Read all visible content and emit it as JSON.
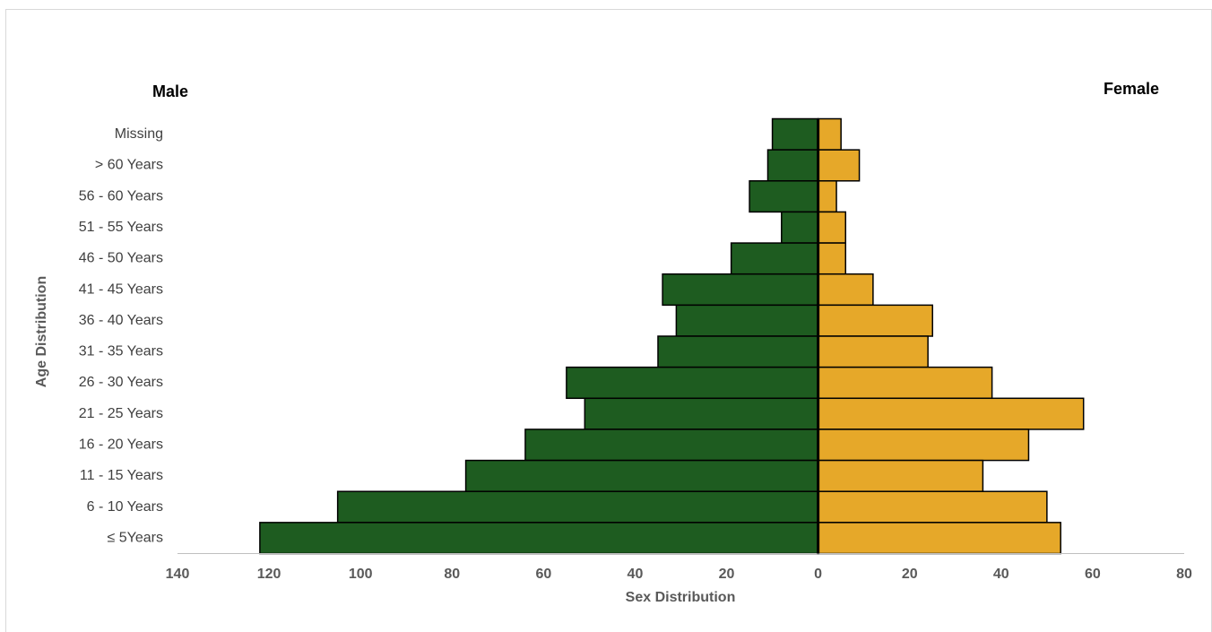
{
  "chart_data": {
    "type": "pyramid",
    "y_label": "Age Distribution",
    "x_label": "Sex Distribution",
    "categories": [
      "Missing",
      "> 60 Years",
      "56 - 60 Years",
      "51 - 55 Years",
      "46 - 50 Years",
      "41 - 45 Years",
      "36 - 40 Years",
      "31 - 35 Years",
      "26 - 30 Years",
      "21 - 25 Years",
      "16 - 20 Years",
      "11 - 15 Years",
      "6 - 10 Years",
      "≤ 5Years"
    ],
    "series": [
      {
        "name": "Male",
        "color": "#1e5c20",
        "values": [
          -10,
          -11,
          -15,
          -8,
          -19,
          -34,
          -31,
          -35,
          -55,
          -51,
          -64,
          -77,
          -105,
          -122
        ]
      },
      {
        "name": "Female",
        "color": "#e6a829",
        "values": [
          5,
          9,
          4,
          6,
          6,
          12,
          25,
          24,
          38,
          58,
          46,
          36,
          50,
          53
        ]
      }
    ],
    "xlim": [
      -140,
      80
    ],
    "xticks": [
      {
        "value": -140,
        "label": "140"
      },
      {
        "value": -120,
        "label": "120"
      },
      {
        "value": -100,
        "label": "100"
      },
      {
        "value": -80,
        "label": "80"
      },
      {
        "value": -60,
        "label": "60"
      },
      {
        "value": -40,
        "label": "40"
      },
      {
        "value": -20,
        "label": "20"
      },
      0,
      20,
      40,
      60,
      80
    ],
    "grid": false
  }
}
